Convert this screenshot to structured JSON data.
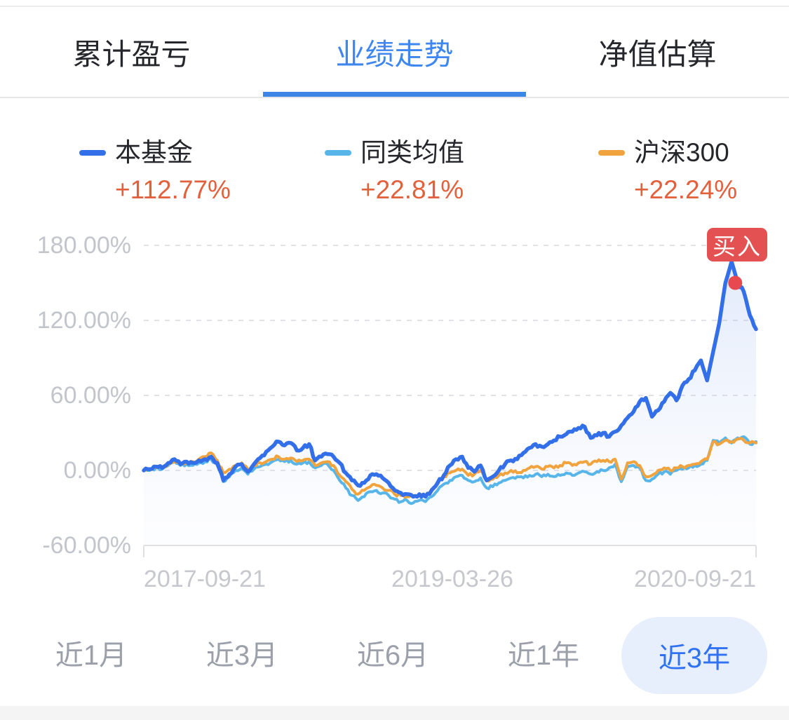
{
  "tabs": [
    {
      "label": "累计盈亏",
      "active": false
    },
    {
      "label": "业绩走势",
      "active": true
    },
    {
      "label": "净值估算",
      "active": false
    }
  ],
  "legend": [
    {
      "name": "本基金",
      "value": "+112.77%"
    },
    {
      "name": "同类均值",
      "value": "+22.81%"
    },
    {
      "name": "沪深300",
      "value": "+22.24%"
    }
  ],
  "legend_value_color": "#e2603c",
  "badge": {
    "label": "买入",
    "bg_color": "#e45152",
    "text_color": "#ffffff"
  },
  "range_buttons": [
    {
      "label": "近1月",
      "active": false
    },
    {
      "label": "近3月",
      "active": false
    },
    {
      "label": "近6月",
      "active": false
    },
    {
      "label": "近1年",
      "active": false
    },
    {
      "label": "近3年",
      "active": true
    }
  ],
  "chart_data": {
    "type": "line",
    "title": "业绩走势",
    "x_tick_labels": [
      "2017-09-21",
      "2019-03-26",
      "2020-09-21"
    ],
    "y_tick_labels": [
      "180.00%",
      "120.00%",
      "60.00%",
      "0.00%",
      "-60.00%"
    ],
    "y_ticks": [
      180,
      120,
      60,
      0,
      -60
    ],
    "ylim": [
      -60,
      180
    ],
    "unit": "percent",
    "grid": "horizontal-dashed",
    "legend_position": "top",
    "series": [
      {
        "name": "本基金",
        "color": "#336fe8",
        "final_value": "+112.77%",
        "area_fill": true,
        "values": [
          0,
          1,
          3,
          2,
          6,
          9,
          5,
          7,
          6,
          8,
          9,
          11,
          6,
          -8,
          -3,
          3,
          5,
          -1,
          5,
          10,
          15,
          19,
          23,
          20,
          22,
          16,
          18,
          21,
          8,
          11,
          13,
          11,
          6,
          -2,
          -8,
          -12,
          -10,
          -4,
          -3,
          -6,
          -10,
          -16,
          -18,
          -19,
          -21,
          -19,
          -21,
          -16,
          -10,
          -4,
          4,
          9,
          11,
          2,
          -1,
          4,
          -8,
          -5,
          0,
          5,
          8,
          9,
          14,
          18,
          21,
          19,
          21,
          24,
          27,
          29,
          31,
          34,
          35,
          26,
          28,
          30,
          27,
          31,
          36,
          42,
          47,
          55,
          58,
          43,
          48,
          55,
          62,
          56,
          68,
          73,
          80,
          88,
          72,
          95,
          118,
          150,
          167,
          150,
          143,
          124,
          113
        ]
      },
      {
        "name": "同类均值",
        "color": "#57b5e9",
        "final_value": "+22.81%",
        "area_fill": false,
        "values": [
          0,
          0,
          2,
          1,
          4,
          7,
          4,
          5,
          4,
          6,
          7,
          9,
          4,
          -9,
          -5,
          0,
          2,
          -3,
          1,
          3,
          5,
          7,
          9,
          7,
          8,
          5,
          6,
          7,
          2,
          4,
          5,
          0,
          -8,
          -14,
          -20,
          -24,
          -21,
          -17,
          -16,
          -18,
          -20,
          -23,
          -25,
          -24,
          -26,
          -24,
          -25,
          -21,
          -16,
          -11,
          -8,
          -5,
          -4,
          -8,
          -9,
          -6,
          -14,
          -13,
          -10,
          -8,
          -6,
          -5,
          -6,
          -4,
          -3,
          -5,
          -3,
          -5,
          -4,
          -2,
          -4,
          -2,
          -1,
          -3,
          -1,
          0,
          2,
          5,
          -9,
          3,
          4,
          2,
          -8,
          -7,
          -3,
          -1,
          -3,
          0,
          1,
          2,
          4,
          5,
          8,
          24,
          22,
          26,
          22,
          26,
          27,
          21,
          23
        ]
      },
      {
        "name": "沪深300",
        "color": "#f1a33e",
        "final_value": "+22.24%",
        "area_fill": false,
        "values": [
          0,
          1,
          2,
          3,
          5,
          7,
          5,
          6,
          7,
          9,
          11,
          14,
          8,
          -2,
          1,
          4,
          6,
          1,
          4,
          6,
          7,
          9,
          11,
          9,
          10,
          7,
          8,
          9,
          4,
          6,
          7,
          4,
          -4,
          -9,
          -15,
          -19,
          -16,
          -13,
          -12,
          -14,
          -16,
          -19,
          -20,
          -21,
          -20,
          -19,
          -21,
          -15,
          -11,
          -5,
          -2,
          0,
          1,
          -4,
          -3,
          0,
          -8,
          -7,
          -4,
          -2,
          0,
          -2,
          0,
          2,
          3,
          1,
          3,
          2,
          4,
          6,
          4,
          6,
          7,
          5,
          7,
          8,
          7,
          9,
          -7,
          6,
          7,
          4,
          -5,
          -4,
          0,
          2,
          0,
          2,
          3,
          4,
          5,
          7,
          9,
          23,
          21,
          24,
          23,
          25,
          24,
          22,
          22
        ]
      }
    ],
    "marker": {
      "label": "买入",
      "t": 0.966,
      "value": 150,
      "dot_color": "#e8484f"
    }
  }
}
